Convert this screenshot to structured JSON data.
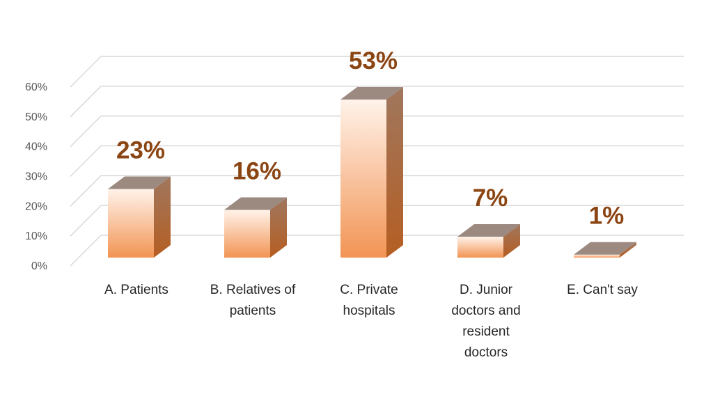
{
  "chart_data": {
    "type": "bar",
    "style": "3d-column",
    "categories": [
      [
        "A. Patients"
      ],
      [
        "B. Relatives of",
        "patients"
      ],
      [
        "C. Private",
        "hospitals"
      ],
      [
        "D. Junior",
        "doctors and",
        "resident",
        "doctors"
      ],
      [
        "E. Can't say"
      ]
    ],
    "values": [
      23,
      16,
      53,
      7,
      1
    ],
    "data_labels": [
      "23%",
      "16%",
      "53%",
      "7%",
      "1%"
    ],
    "y_ticks": [
      "0%",
      "10%",
      "20%",
      "30%",
      "40%",
      "50%",
      "60%"
    ],
    "ylim": [
      0,
      60
    ],
    "grid": true,
    "legend": "none",
    "colors": {
      "bar_light": "#FFF3EA",
      "bar_dark": "#F29454",
      "bar_side": "#B0673A",
      "bar_top": "#9C8A80",
      "label": "#8B4513",
      "grid": "#D9D9D9"
    }
  }
}
